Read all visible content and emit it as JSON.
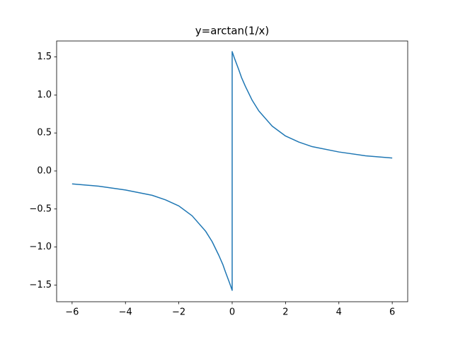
{
  "chart_data": {
    "type": "line",
    "title": "y=arctan(1/x)",
    "x": [
      -6,
      -5,
      -4,
      -3,
      -2.5,
      -2,
      -1.5,
      -1,
      -0.75,
      -0.5,
      -0.35,
      -0.25,
      -0.1,
      0,
      0,
      0.1,
      0.25,
      0.35,
      0.5,
      0.75,
      1,
      1.5,
      2,
      2.5,
      3,
      4,
      5,
      6
    ],
    "series": [
      {
        "color": "#1f77b4",
        "values": [
          -0.17,
          -0.2,
          -0.25,
          -0.32,
          -0.38,
          -0.46,
          -0.59,
          -0.79,
          -0.93,
          -1.11,
          -1.23,
          -1.33,
          -1.47,
          -1.57,
          1.57,
          1.47,
          1.33,
          1.23,
          1.11,
          0.93,
          0.79,
          0.59,
          0.46,
          0.38,
          0.32,
          0.25,
          0.2,
          0.17
        ]
      }
    ],
    "xlim": [
      -6.58,
      6.58
    ],
    "xticks": [
      {
        "value": -6,
        "label": "−6"
      },
      {
        "value": -4,
        "label": "−4"
      },
      {
        "value": -2,
        "label": "−2"
      },
      0,
      2,
      4,
      6
    ],
    "ylim": [
      -1.72,
      1.71
    ],
    "yticks": [
      {
        "value": -1.5,
        "label": "−1.5"
      },
      {
        "value": -1.0,
        "label": "−1.0"
      },
      {
        "value": -0.5,
        "label": "−0.5"
      },
      {
        "value": 0,
        "label": "0.0"
      },
      0.5,
      {
        "value": 1.0,
        "label": "1.0"
      },
      1.5
    ],
    "grid": false
  }
}
